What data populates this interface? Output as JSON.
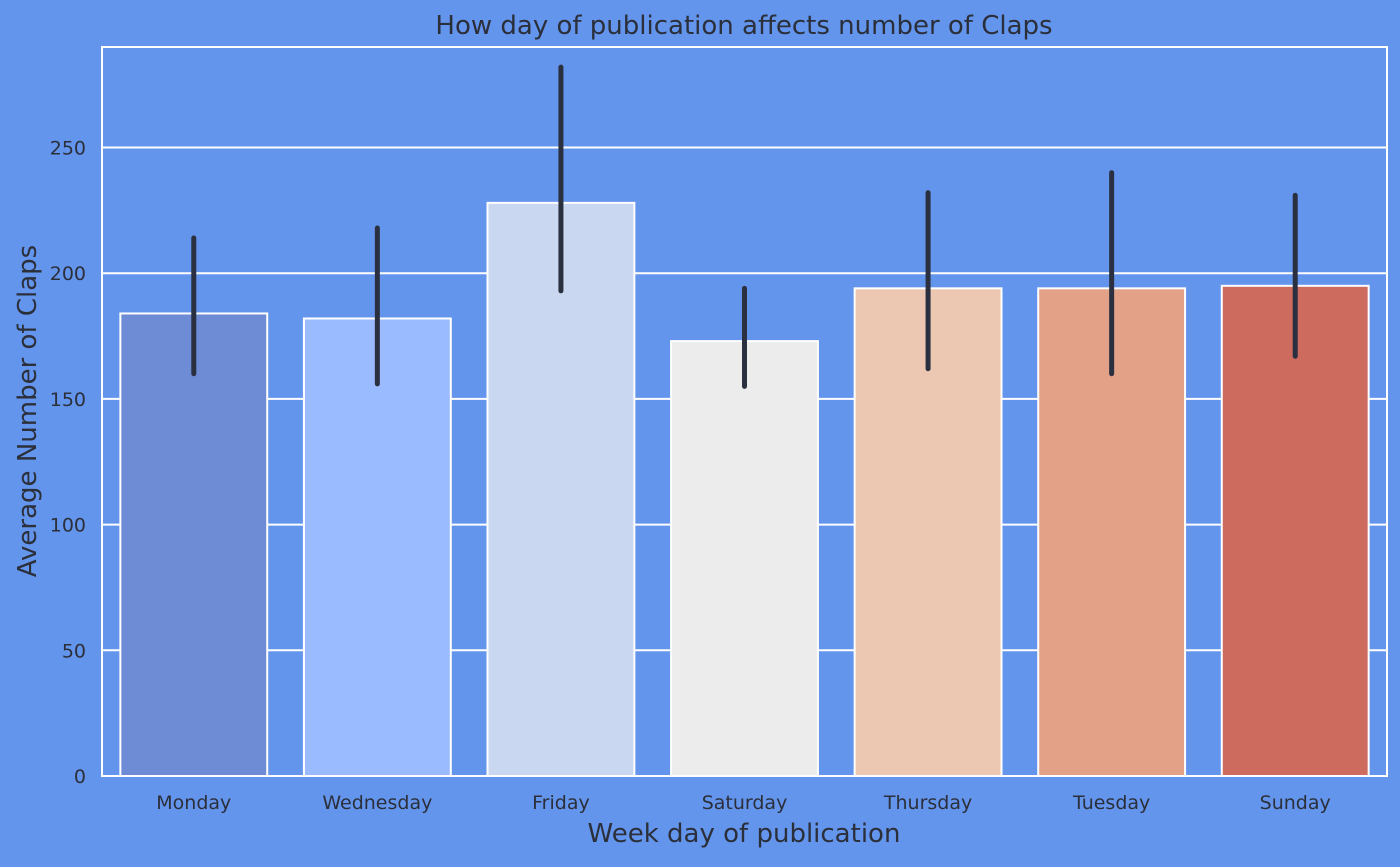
{
  "chart_data": {
    "type": "bar",
    "title": "How day of publication affects number of Claps",
    "xlabel": "Week day of publication",
    "ylabel": "Average Number of Claps",
    "categories": [
      "Monday",
      "Wednesday",
      "Friday",
      "Saturday",
      "Thursday",
      "Tuesday",
      "Sunday"
    ],
    "values": [
      184,
      182,
      228,
      173,
      194,
      194,
      195
    ],
    "error_low": [
      160,
      156,
      193,
      155,
      162,
      160,
      167
    ],
    "error_high": [
      214,
      218,
      282,
      194,
      232,
      240,
      231
    ],
    "colors": [
      "#6e8cd5",
      "#9abbff",
      "#c9d7f0",
      "#ececec",
      "#ecc8b2",
      "#e3a188",
      "#cc6b5e"
    ],
    "ylim": [
      0,
      290
    ],
    "yticks": [
      0,
      50,
      100,
      150,
      200,
      250
    ],
    "grid": true,
    "background": "#6495ED",
    "text_color": "#2b2f3a",
    "grid_color": "#ffffff",
    "errorbar_color": "#2b3040"
  }
}
